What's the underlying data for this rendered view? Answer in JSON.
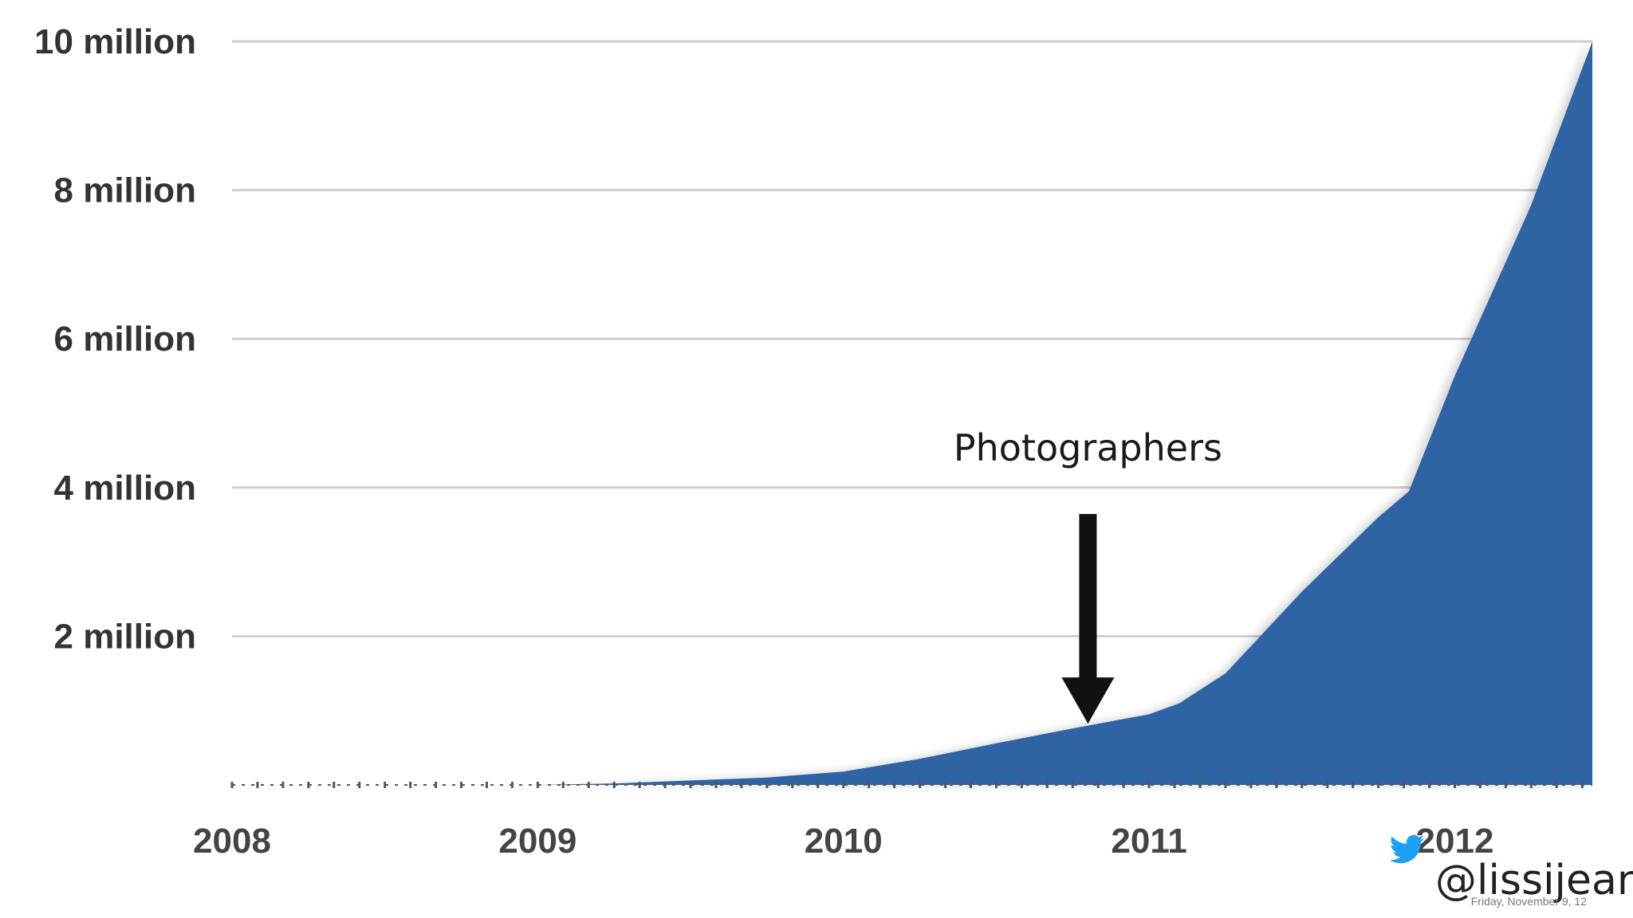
{
  "colors": {
    "area": "#2e64a4",
    "grid": "#cfcfcf",
    "arrow": "#111111",
    "twitter": "#1da1f2"
  },
  "chart_data": {
    "type": "area",
    "title": "",
    "xlabel": "",
    "ylabel": "",
    "x_ticks": [
      "2008",
      "2009",
      "2010",
      "2011",
      "2012"
    ],
    "xlim": [
      2008.0,
      2012.45
    ],
    "y_ticks": [
      {
        "value": 2000000,
        "label": "2 million"
      },
      {
        "value": 4000000,
        "label": "4 million"
      },
      {
        "value": 6000000,
        "label": "6 million"
      },
      {
        "value": 8000000,
        "label": "8 million"
      },
      {
        "value": 10000000,
        "label": "10 million"
      }
    ],
    "ylim": [
      0,
      10000000
    ],
    "grid": true,
    "series": [
      {
        "x": [
          2008.0,
          2009.0,
          2009.25,
          2009.5,
          2009.75,
          2010.0,
          2010.25,
          2010.5,
          2010.75,
          2011.0,
          2011.1,
          2011.25,
          2011.5,
          2011.75,
          2011.85,
          2012.0,
          2012.25,
          2012.45
        ],
        "y": [
          0,
          0,
          20000,
          60000,
          100000,
          180000,
          350000,
          560000,
          760000,
          950000,
          1100000,
          1500000,
          2600000,
          3600000,
          3950000,
          5500000,
          7800000,
          10000000
        ]
      }
    ],
    "annotations": [
      {
        "text": "Photographers",
        "x": 2010.8,
        "y": 760000
      }
    ]
  },
  "overlay": {
    "twitter_icon": "twitter-bird-icon",
    "handle": "@lissijean",
    "footer_text": "Friday, November 9, 12"
  }
}
